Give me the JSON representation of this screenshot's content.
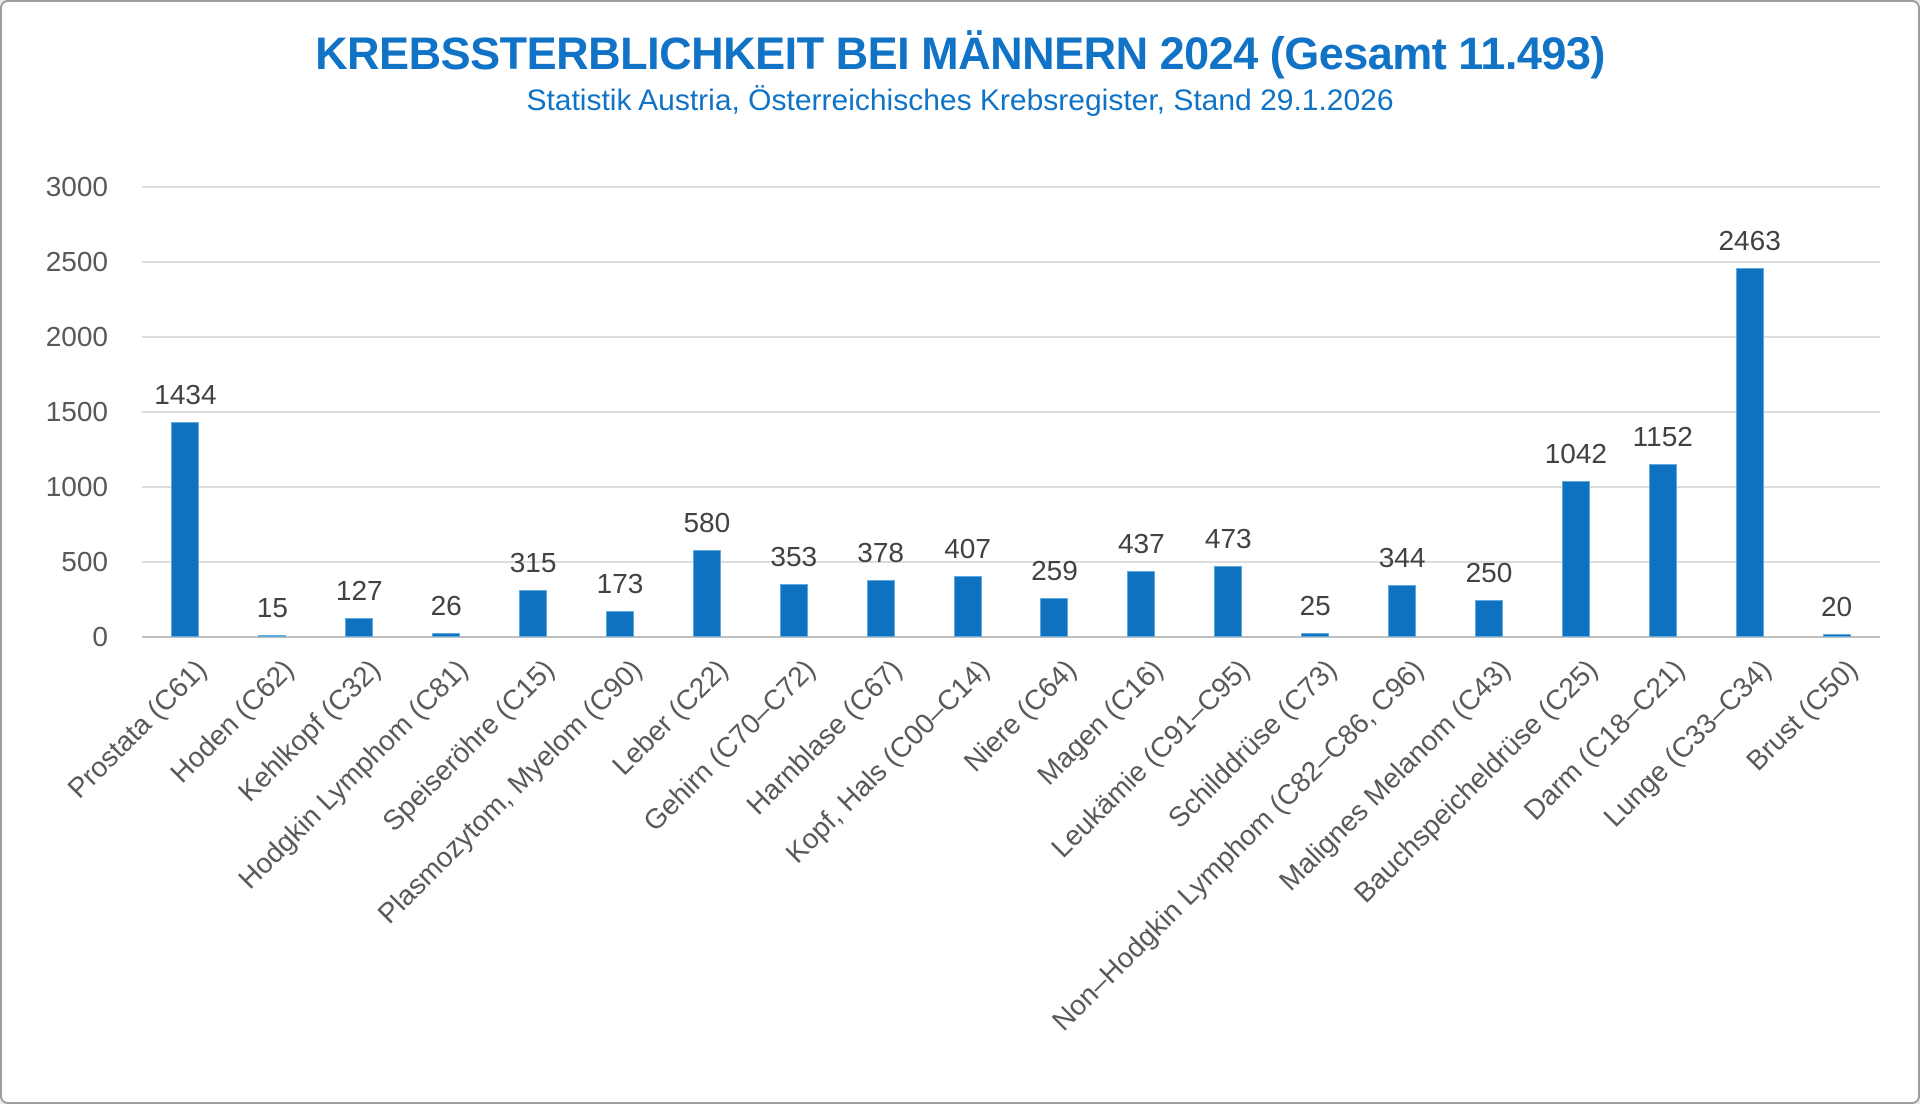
{
  "header": {
    "title": "KREBSSTERBLICHKEIT BEI MÄNNERN 2024 (Gesamt 11.493)",
    "subtitle": "Statistik Austria, Österreichisches Krebsregister, Stand 29.1.2026"
  },
  "colors": {
    "bar_fill": "#0e72c1",
    "bar_edge": "#62aadd",
    "title_blue": "#1173c6",
    "axis_text": "#595959",
    "value_text": "#424242",
    "gridline": "#dcdcdc",
    "baseline": "#c0c0c0"
  },
  "chart_data": {
    "type": "bar",
    "title": "KREBSSTERBLICHKEIT BEI MÄNNERN 2024 (Gesamt 11.493)",
    "subtitle": "Statistik Austria, Österreichisches Krebsregister, Stand 29.1.2026",
    "xlabel": "",
    "ylabel": "",
    "ylim": [
      0,
      3000
    ],
    "ytick_step": 500,
    "ytick_labels": [
      "0",
      "500",
      "1000",
      "1500",
      "2000",
      "2500",
      "3000"
    ],
    "grid": true,
    "legend": false,
    "data_labels_shown": true,
    "categories": [
      "Prostata (C61)",
      "Hoden (C62)",
      "Kehlkopf (C32)",
      "Hodgkin Lymphom (C81)",
      "Speiseröhre (C15)",
      "Plasmozytom, Myelom (C90)",
      "Leber (C22)",
      "Gehirn (C70–C72)",
      "Harnblase (C67)",
      "Kopf, Hals (C00–C14)",
      "Niere (C64)",
      "Magen (C16)",
      "Leukämie (C91–C95)",
      "Schilddrüse (C73)",
      "Non–Hodgkin Lymphom (C82–C86, C96)",
      "Malignes Melanom (C43)",
      "Bauchspeicheldrüse (C25)",
      "Darm (C18–C21)",
      "Lunge (C33–C34)",
      "Brust (C50)"
    ],
    "values": [
      1434,
      15,
      127,
      26,
      315,
      173,
      580,
      353,
      378,
      407,
      259,
      437,
      473,
      25,
      344,
      250,
      1042,
      1152,
      2463,
      20
    ]
  }
}
